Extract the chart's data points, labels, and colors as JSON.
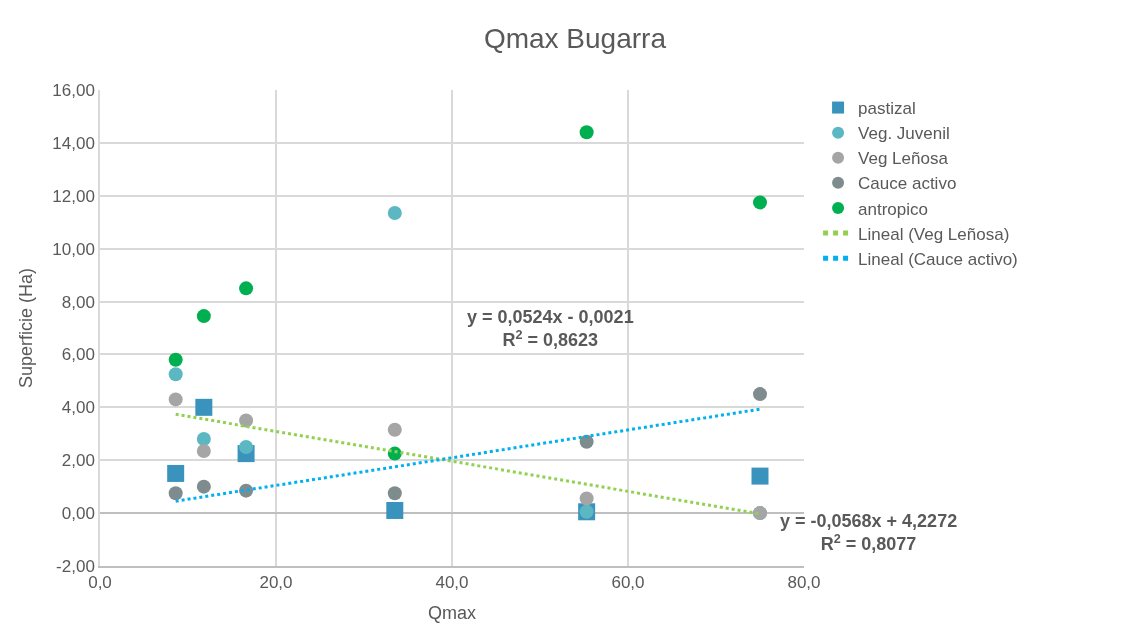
{
  "chart_data": {
    "type": "scatter",
    "title": "Qmax Bugarra",
    "xlabel": "Qmax",
    "ylabel": "Superficie (Ha)",
    "xlim": [
      0,
      80
    ],
    "xticks": [
      {
        "value": 0,
        "label": "0,0"
      },
      {
        "value": 20,
        "label": "20,0"
      },
      {
        "value": 40,
        "label": "40,0"
      },
      {
        "value": 60,
        "label": "60,0"
      },
      {
        "value": 80,
        "label": "80,0"
      }
    ],
    "ylim": [
      -2,
      16
    ],
    "yticks": [
      {
        "value": -2,
        "label": "-2,00"
      },
      {
        "value": 0,
        "label": "0,00"
      },
      {
        "value": 2,
        "label": "2,00"
      },
      {
        "value": 4,
        "label": "4,00"
      },
      {
        "value": 6,
        "label": "6,00"
      },
      {
        "value": 8,
        "label": "8,00"
      },
      {
        "value": 10,
        "label": "10,00"
      },
      {
        "value": 12,
        "label": "12,00"
      },
      {
        "value": 14,
        "label": "14,00"
      },
      {
        "value": 16,
        "label": "16,00"
      }
    ],
    "x": [
      8.6,
      11.8,
      16.6,
      33.5,
      55.3,
      75.0
    ],
    "grid": true,
    "legend": "right",
    "series": [
      {
        "name": "pastizal",
        "color": "#3a93bc",
        "marker": "square",
        "values": [
          1.5,
          4.0,
          2.25,
          0.1,
          0.05,
          1.4
        ]
      },
      {
        "name": "Veg. Juvenil",
        "color": "#5bb8c2",
        "marker": "circle",
        "values": [
          5.25,
          2.8,
          2.5,
          11.35,
          0.05,
          0.0
        ]
      },
      {
        "name": "Veg Leñosa",
        "color": "#a5a5a5",
        "marker": "circle",
        "values": [
          4.3,
          2.35,
          3.5,
          3.15,
          0.55,
          0.0
        ]
      },
      {
        "name": "Cauce activo",
        "color": "#7f8c8d",
        "marker": "circle",
        "values": [
          0.75,
          1.0,
          0.85,
          0.75,
          2.7,
          4.5
        ]
      },
      {
        "name": "antropico",
        "color": "#00b050",
        "marker": "circle",
        "values": [
          5.8,
          7.45,
          8.5,
          2.25,
          14.4,
          11.75
        ]
      },
      {
        "name": "Lineal (Veg Leñosa)",
        "type": "line",
        "line_style": "dotted",
        "color": "#92d050",
        "values": [
          3.74,
          3.56,
          3.28,
          2.33,
          1.09,
          -0.03
        ]
      },
      {
        "name": "Lineal (Cauce activo)",
        "type": "line",
        "line_style": "dotted",
        "color": "#00b0f0",
        "values": [
          0.45,
          0.62,
          0.87,
          1.75,
          2.9,
          3.93
        ]
      }
    ],
    "annotations": [
      "y = 0,0524x - 0,0021\nR$^{2}$ = 0,8623",
      "y = -0,0568x + 4,2272\nR$^{2}$ = 0,8077"
    ]
  }
}
